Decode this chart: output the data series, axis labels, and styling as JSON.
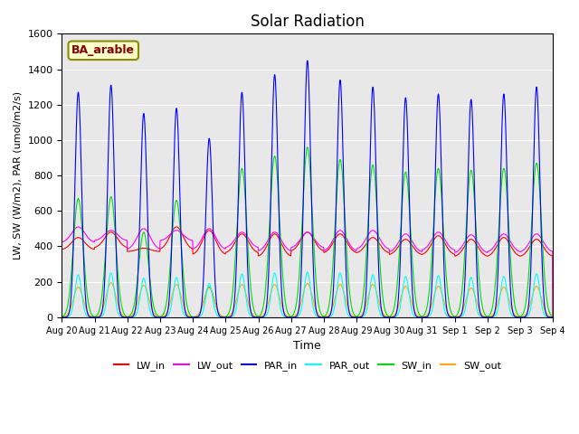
{
  "title": "Solar Radiation",
  "xlabel": "Time",
  "ylabel": "LW, SW (W/m2), PAR (umol/m2/s)",
  "annotation_text": "BA_arable",
  "ylim": [
    0,
    1600
  ],
  "yticks": [
    0,
    200,
    400,
    600,
    800,
    1000,
    1200,
    1400,
    1600
  ],
  "n_days": 15,
  "background_color": "#e8e8e8",
  "tick_labels": [
    "Aug 20",
    "Aug 21",
    "Aug 22",
    "Aug 23",
    "Aug 24",
    "Aug 25",
    "Aug 26",
    "Aug 27",
    "Aug 28",
    "Aug 29",
    "Aug 30",
    "Aug 31",
    "Sep 1",
    "Sep 2",
    "Sep 3",
    "Sep 4"
  ],
  "colors": {
    "LW_in": "#ff0000",
    "LW_out": "#ff00ff",
    "PAR_in": "#0000ff",
    "PAR_out": "#00ffff",
    "SW_in": "#00dd00",
    "SW_out": "#ffaa00"
  },
  "day_peaks_PAR_in": [
    1270,
    1310,
    1150,
    1180,
    1010,
    1270,
    1370,
    1450,
    1340,
    1300,
    1240,
    1260,
    1230,
    1260,
    1300
  ],
  "day_peaks_PAR_out": [
    240,
    250,
    220,
    225,
    190,
    245,
    250,
    255,
    250,
    240,
    230,
    235,
    225,
    230,
    245
  ],
  "day_peaks_SW_in": [
    670,
    680,
    480,
    660,
    170,
    840,
    910,
    960,
    890,
    860,
    820,
    840,
    830,
    840,
    870
  ],
  "day_peaks_SW_out": [
    170,
    195,
    180,
    185,
    165,
    185,
    185,
    190,
    185,
    185,
    175,
    175,
    165,
    170,
    175
  ],
  "day_base_LW_in": [
    380,
    390,
    370,
    380,
    350,
    360,
    340,
    370,
    360,
    360,
    350,
    350,
    340,
    340,
    340
  ],
  "day_peak_LW_in": [
    450,
    480,
    390,
    510,
    490,
    470,
    470,
    480,
    470,
    450,
    440,
    460,
    440,
    450,
    440
  ],
  "day_base_LW_out": [
    420,
    430,
    380,
    430,
    380,
    390,
    370,
    390,
    370,
    380,
    365,
    375,
    360,
    365,
    365
  ],
  "day_peak_LW_out": [
    510,
    490,
    500,
    490,
    500,
    480,
    480,
    480,
    490,
    490,
    470,
    480,
    465,
    470,
    470
  ]
}
